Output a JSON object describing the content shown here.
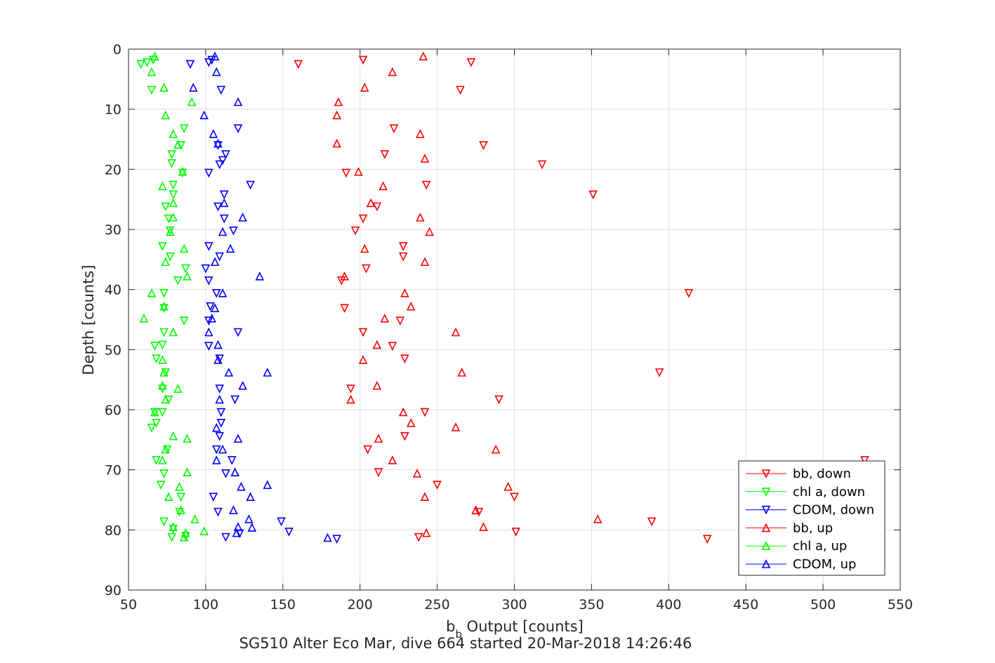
{
  "chart_data": {
    "type": "scatter",
    "xlabel_main": "b",
    "xlabel_sub": "b",
    "xlabel_rest": " Output [counts]",
    "ylabel": "Depth [counts]",
    "caption": "SG510 Alter Eco Mar, dive 664 started 20-Mar-2018 14:26:46",
    "xlim": [
      50,
      550
    ],
    "ylim": [
      0,
      90
    ],
    "y_reversed": true,
    "x_ticks": [
      "50",
      "100",
      "150",
      "200",
      "250",
      "300",
      "350",
      "400",
      "450",
      "500",
      "550"
    ],
    "y_ticks": [
      "0",
      "10",
      "20",
      "30",
      "40",
      "50",
      "60",
      "70",
      "80",
      "90"
    ],
    "grid": true,
    "legend_position": "bottom-right",
    "series": [
      {
        "name": "bb, down",
        "color": "#ff0000",
        "marker": "down",
        "points": [
          [
            202,
            1.8
          ],
          [
            160,
            2.5
          ],
          [
            272,
            2.2
          ],
          [
            265,
            6.8
          ],
          [
            222,
            13.2
          ],
          [
            280,
            16.0
          ],
          [
            216,
            17.5
          ],
          [
            318,
            19.2
          ],
          [
            191,
            20.6
          ],
          [
            243,
            22.6
          ],
          [
            351,
            24.2
          ],
          [
            211,
            26.2
          ],
          [
            202,
            28.2
          ],
          [
            197,
            30.2
          ],
          [
            228,
            32.8
          ],
          [
            228,
            34.5
          ],
          [
            204,
            36.5
          ],
          [
            188,
            38.5
          ],
          [
            413,
            40.6
          ],
          [
            190,
            43.1
          ],
          [
            226,
            45.2
          ],
          [
            202,
            47.1
          ],
          [
            221,
            49.4
          ],
          [
            229,
            51.5
          ],
          [
            394,
            53.8
          ],
          [
            194,
            56.5
          ],
          [
            290,
            58.3
          ],
          [
            242,
            60.4
          ],
          [
            229,
            64.4
          ],
          [
            205,
            66.6
          ],
          [
            212,
            70.4
          ],
          [
            250,
            72.5
          ],
          [
            300,
            74.5
          ],
          [
            277,
            77.0
          ],
          [
            389,
            78.6
          ],
          [
            301,
            80.3
          ],
          [
            238,
            81.2
          ],
          [
            425,
            81.5
          ],
          [
            527,
            68.4
          ]
        ]
      },
      {
        "name": "chl a, down",
        "color": "#00ff00",
        "marker": "down",
        "points": [
          [
            66,
            1.8
          ],
          [
            62,
            2.2
          ],
          [
            58,
            2.5
          ],
          [
            65,
            6.8
          ],
          [
            86,
            13.2
          ],
          [
            84,
            16.0
          ],
          [
            78,
            17.5
          ],
          [
            78,
            19.0
          ],
          [
            85,
            20.6
          ],
          [
            79,
            22.6
          ],
          [
            79,
            24.2
          ],
          [
            74,
            26.2
          ],
          [
            76,
            28.2
          ],
          [
            77,
            30.2
          ],
          [
            72,
            32.8
          ],
          [
            77,
            34.5
          ],
          [
            87,
            36.5
          ],
          [
            82,
            38.5
          ],
          [
            73,
            40.6
          ],
          [
            73,
            43.1
          ],
          [
            86,
            45.2
          ],
          [
            73,
            47.1
          ],
          [
            67,
            49.4
          ],
          [
            72,
            49.2
          ],
          [
            68,
            51.5
          ],
          [
            74,
            53.8
          ],
          [
            72,
            56.5
          ],
          [
            76,
            58.3
          ],
          [
            67,
            60.4
          ],
          [
            72,
            60.4
          ],
          [
            68,
            62.2
          ],
          [
            65,
            63.0
          ],
          [
            75,
            66.6
          ],
          [
            68,
            68.4
          ],
          [
            73,
            70.6
          ],
          [
            71,
            72.5
          ],
          [
            84,
            74.5
          ],
          [
            83,
            77.0
          ],
          [
            73,
            78.6
          ],
          [
            79,
            79.8
          ],
          [
            87,
            81.0
          ],
          [
            78,
            81.2
          ]
        ]
      },
      {
        "name": "CDOM, down",
        "color": "#0000ff",
        "marker": "down",
        "points": [
          [
            104,
            1.8
          ],
          [
            102,
            2.2
          ],
          [
            90,
            2.5
          ],
          [
            110,
            6.8
          ],
          [
            121,
            13.2
          ],
          [
            108,
            16.0
          ],
          [
            113,
            17.5
          ],
          [
            111,
            18.5
          ],
          [
            109,
            19.2
          ],
          [
            102,
            20.6
          ],
          [
            129,
            22.6
          ],
          [
            112,
            24.2
          ],
          [
            108,
            26.2
          ],
          [
            112,
            28.2
          ],
          [
            118,
            30.2
          ],
          [
            102,
            32.8
          ],
          [
            109,
            34.5
          ],
          [
            100,
            36.5
          ],
          [
            102,
            38.5
          ],
          [
            107,
            40.6
          ],
          [
            103,
            42.8
          ],
          [
            102,
            45.2
          ],
          [
            121,
            47.1
          ],
          [
            102,
            49.4
          ],
          [
            109,
            51.5
          ],
          [
            109,
            56.5
          ],
          [
            119,
            58.3
          ],
          [
            110,
            60.4
          ],
          [
            110,
            62.2
          ],
          [
            109,
            64.4
          ],
          [
            107,
            66.6
          ],
          [
            117,
            68.4
          ],
          [
            113,
            70.6
          ],
          [
            105,
            74.5
          ],
          [
            108,
            77.0
          ],
          [
            149,
            78.6
          ],
          [
            154,
            80.3
          ],
          [
            113,
            81.2
          ],
          [
            185,
            81.5
          ],
          [
            122,
            80.6
          ]
        ]
      },
      {
        "name": "bb, up",
        "color": "#ff0000",
        "marker": "up",
        "points": [
          [
            241,
            1.2
          ],
          [
            221,
            3.8
          ],
          [
            203,
            6.4
          ],
          [
            186,
            8.8
          ],
          [
            185,
            11.0
          ],
          [
            239,
            14.1
          ],
          [
            185,
            15.7
          ],
          [
            242,
            18.2
          ],
          [
            199,
            20.4
          ],
          [
            215,
            22.8
          ],
          [
            207,
            25.6
          ],
          [
            239,
            28.0
          ],
          [
            245,
            30.4
          ],
          [
            203,
            33.2
          ],
          [
            242,
            35.4
          ],
          [
            190,
            37.8
          ],
          [
            229,
            40.6
          ],
          [
            233,
            42.8
          ],
          [
            216,
            44.8
          ],
          [
            262,
            47.1
          ],
          [
            211,
            49.2
          ],
          [
            202,
            51.7
          ],
          [
            266,
            53.8
          ],
          [
            211,
            56.0
          ],
          [
            194,
            58.3
          ],
          [
            228,
            60.4
          ],
          [
            233,
            62.2
          ],
          [
            262,
            62.9
          ],
          [
            212,
            64.8
          ],
          [
            288,
            66.6
          ],
          [
            221,
            68.4
          ],
          [
            237,
            70.6
          ],
          [
            242,
            74.5
          ],
          [
            296,
            72.8
          ],
          [
            275,
            76.7
          ],
          [
            354,
            78.2
          ],
          [
            280,
            79.5
          ],
          [
            243,
            80.5
          ]
        ]
      },
      {
        "name": "chl a, up",
        "color": "#00ff00",
        "marker": "up",
        "points": [
          [
            67,
            1.2
          ],
          [
            65,
            3.8
          ],
          [
            73,
            6.4
          ],
          [
            91,
            8.8
          ],
          [
            74,
            11.0
          ],
          [
            79,
            14.1
          ],
          [
            82,
            15.9
          ],
          [
            85,
            20.4
          ],
          [
            72,
            22.8
          ],
          [
            79,
            25.6
          ],
          [
            79,
            28.0
          ],
          [
            77,
            30.4
          ],
          [
            86,
            33.2
          ],
          [
            74,
            35.4
          ],
          [
            88,
            37.8
          ],
          [
            65,
            40.6
          ],
          [
            73,
            42.8
          ],
          [
            60,
            44.8
          ],
          [
            79,
            47.1
          ],
          [
            72,
            51.7
          ],
          [
            73,
            53.8
          ],
          [
            72,
            56.0
          ],
          [
            82,
            56.5
          ],
          [
            74,
            58.3
          ],
          [
            67,
            60.4
          ],
          [
            79,
            64.4
          ],
          [
            88,
            64.8
          ],
          [
            74,
            66.6
          ],
          [
            72,
            68.4
          ],
          [
            88,
            70.4
          ],
          [
            83,
            72.8
          ],
          [
            76,
            74.5
          ],
          [
            84,
            76.7
          ],
          [
            93,
            78.2
          ],
          [
            99,
            80.2
          ],
          [
            87,
            80.5
          ],
          [
            86,
            81.2
          ],
          [
            79,
            79.5
          ]
        ]
      },
      {
        "name": "CDOM, up",
        "color": "#0000ff",
        "marker": "up",
        "points": [
          [
            106,
            1.2
          ],
          [
            107,
            3.8
          ],
          [
            92,
            6.4
          ],
          [
            121,
            8.8
          ],
          [
            99,
            11.0
          ],
          [
            105,
            14.1
          ],
          [
            108,
            15.7
          ],
          [
            112,
            25.6
          ],
          [
            124,
            28.0
          ],
          [
            111,
            30.4
          ],
          [
            116,
            33.2
          ],
          [
            106,
            35.4
          ],
          [
            135,
            37.8
          ],
          [
            111,
            40.6
          ],
          [
            106,
            43.1
          ],
          [
            104,
            44.8
          ],
          [
            102,
            47.1
          ],
          [
            108,
            49.2
          ],
          [
            108,
            51.7
          ],
          [
            115,
            53.8
          ],
          [
            140,
            53.8
          ],
          [
            124,
            56.0
          ],
          [
            109,
            58.3
          ],
          [
            107,
            63.0
          ],
          [
            121,
            64.8
          ],
          [
            111,
            66.6
          ],
          [
            107,
            68.4
          ],
          [
            119,
            70.4
          ],
          [
            123,
            72.8
          ],
          [
            140,
            72.5
          ],
          [
            129,
            74.5
          ],
          [
            118,
            76.7
          ],
          [
            128,
            78.2
          ],
          [
            130,
            79.6
          ],
          [
            121,
            79.5
          ],
          [
            179,
            81.3
          ],
          [
            120,
            80.5
          ]
        ]
      }
    ]
  }
}
